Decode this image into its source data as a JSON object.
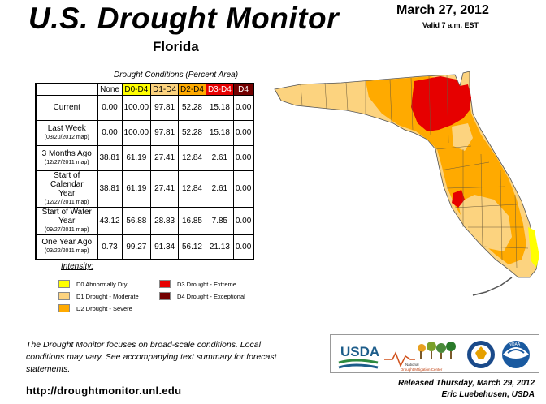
{
  "header": {
    "title": "U.S. Drought Monitor",
    "state": "Florida",
    "date": "March 27, 2012",
    "valid": "Valid 7 a.m. EST"
  },
  "table": {
    "caption": "Drought Conditions (Percent Area)",
    "columns": [
      "None",
      "D0-D4",
      "D1-D4",
      "D2-D4",
      "D3-D4",
      "D4"
    ],
    "column_colors": [
      "#ffffff",
      "#ffff00",
      "#fcd37f",
      "#ffaa00",
      "#e60000",
      "#730000"
    ],
    "column_text_colors": [
      "#000000",
      "#000000",
      "#000000",
      "#000000",
      "#ffffff",
      "#ffffff"
    ],
    "rows": [
      {
        "label": "Current",
        "sub": "",
        "values": [
          "0.00",
          "100.00",
          "97.81",
          "52.28",
          "15.18",
          "0.00"
        ]
      },
      {
        "label": "Last Week",
        "sub": "(03/20/2012 map)",
        "values": [
          "0.00",
          "100.00",
          "97.81",
          "52.28",
          "15.18",
          "0.00"
        ]
      },
      {
        "label": "3 Months Ago",
        "sub": "(12/27/2011 map)",
        "values": [
          "38.81",
          "61.19",
          "27.41",
          "12.84",
          "2.61",
          "0.00"
        ]
      },
      {
        "label": "Start of Calendar Year",
        "sub": "(12/27/2011 map)",
        "values": [
          "38.81",
          "61.19",
          "27.41",
          "12.84",
          "2.61",
          "0.00"
        ]
      },
      {
        "label": "Start of Water Year",
        "sub": "(09/27/2011 map)",
        "values": [
          "43.12",
          "56.88",
          "28.83",
          "16.85",
          "7.85",
          "0.00"
        ]
      },
      {
        "label": "One Year Ago",
        "sub": "(03/22/2011 map)",
        "values": [
          "0.73",
          "99.27",
          "91.34",
          "56.12",
          "21.13",
          "0.00"
        ]
      }
    ]
  },
  "legend": {
    "title": "Intensity:",
    "items": [
      {
        "label": "D0 Abnormally Dry",
        "color": "#ffff00"
      },
      {
        "label": "D1 Drought - Moderate",
        "color": "#fcd37f"
      },
      {
        "label": "D2 Drought - Severe",
        "color": "#ffaa00"
      },
      {
        "label": "D3 Drought - Extreme",
        "color": "#e60000"
      },
      {
        "label": "D4 Drought - Exceptional",
        "color": "#730000"
      }
    ]
  },
  "note": "The Drought Monitor focuses on broad-scale conditions. Local conditions may vary. See accompanying text summary for forecast statements.",
  "url": "http://droughtmonitor.unl.edu",
  "logos": {
    "usda": "USDA",
    "ndmc_line1": "National",
    "ndmc_line2": "Drought Mitigation Center",
    "noaa": "NOAA"
  },
  "released": {
    "line1": "Released Thursday, March 29, 2012",
    "line2": "Eric Luebehusen, USDA"
  },
  "map": {
    "colors": {
      "d1": "#fcd37f",
      "d2": "#ffaa00",
      "d3": "#e60000",
      "d0": "#ffff00"
    }
  }
}
